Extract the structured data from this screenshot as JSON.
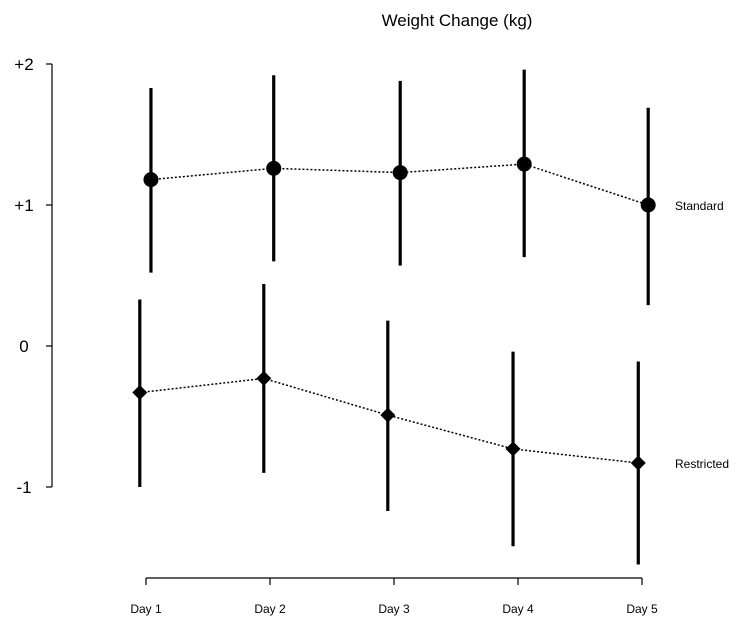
{
  "chart_data": {
    "type": "scatter",
    "title": "Weight Change (kg)",
    "xlabel": "",
    "ylabel": "",
    "categories": [
      "Day 1",
      "Day 2",
      "Day 3",
      "Day 4",
      "Day 5"
    ],
    "ylim": [
      -1.6,
      2.1
    ],
    "yticks": [
      {
        "value": 2,
        "label": "+2"
      },
      {
        "value": 1,
        "label": "+1"
      },
      {
        "value": 0,
        "label": "0"
      },
      {
        "value": -1,
        "label": "-1"
      }
    ],
    "series": [
      {
        "name": "Standard",
        "marker": "circle",
        "x": [
          1.04,
          2.03,
          3.05,
          4.05,
          5.05
        ],
        "values": [
          1.18,
          1.26,
          1.23,
          1.29,
          1.0
        ],
        "lower": [
          0.52,
          0.6,
          0.57,
          0.63,
          0.29
        ],
        "upper": [
          1.83,
          1.92,
          1.88,
          1.96,
          1.69
        ]
      },
      {
        "name": "Restricted",
        "marker": "diamond",
        "x": [
          0.95,
          1.95,
          2.95,
          3.96,
          4.97
        ],
        "values": [
          -0.33,
          -0.23,
          -0.49,
          -0.73,
          -0.83
        ],
        "lower": [
          -1.0,
          -0.9,
          -1.17,
          -1.42,
          -1.55
        ],
        "upper": [
          0.33,
          0.44,
          0.18,
          -0.04,
          -0.11
        ]
      }
    ],
    "grid": false,
    "legend": "none"
  }
}
